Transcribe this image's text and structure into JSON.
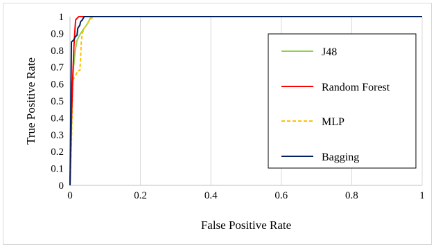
{
  "chart_data": {
    "type": "line",
    "title": "",
    "xlabel": "False Positive Rate",
    "ylabel": "True Positive Rate",
    "xlim": [
      0,
      1
    ],
    "ylim": [
      0,
      1
    ],
    "x_ticks": [
      "0",
      "0.2",
      "0.4",
      "0.6",
      "0.8",
      "1"
    ],
    "y_ticks": [
      "0",
      "0.1",
      "0.2",
      "0.3",
      "0.4",
      "0.5",
      "0.6",
      "0.7",
      "0.8",
      "0.9",
      "1"
    ],
    "grid": "vertical",
    "legend_position": "right",
    "series": [
      {
        "name": "J48",
        "color": "#92d050",
        "dash": "solid",
        "points": [
          [
            0,
            0
          ],
          [
            0.003,
            0.25
          ],
          [
            0.007,
            0.6
          ],
          [
            0.01,
            0.7
          ],
          [
            0.015,
            0.8
          ],
          [
            0.02,
            0.86
          ],
          [
            0.025,
            0.88
          ],
          [
            0.03,
            0.9
          ],
          [
            0.04,
            0.93
          ],
          [
            0.05,
            0.96
          ],
          [
            0.055,
            0.98
          ],
          [
            0.06,
            1.0
          ],
          [
            1,
            1
          ]
        ]
      },
      {
        "name": "Random Forest",
        "color": "#ff0000",
        "dash": "solid",
        "points": [
          [
            0,
            0
          ],
          [
            0.002,
            0.2
          ],
          [
            0.005,
            0.45
          ],
          [
            0.008,
            0.65
          ],
          [
            0.011,
            0.82
          ],
          [
            0.014,
            0.92
          ],
          [
            0.016,
            0.98
          ],
          [
            0.02,
            0.99
          ],
          [
            0.025,
            1.0
          ],
          [
            1,
            1
          ]
        ]
      },
      {
        "name": "MLP",
        "color": "#ffc000",
        "dash": "dashed",
        "points": [
          [
            0,
            0
          ],
          [
            0.004,
            0.25
          ],
          [
            0.008,
            0.62
          ],
          [
            0.012,
            0.64
          ],
          [
            0.018,
            0.66
          ],
          [
            0.022,
            0.68
          ],
          [
            0.028,
            0.68
          ],
          [
            0.03,
            0.75
          ],
          [
            0.032,
            0.85
          ],
          [
            0.035,
            0.9
          ],
          [
            0.04,
            0.93
          ],
          [
            0.05,
            0.96
          ],
          [
            0.06,
            0.99
          ],
          [
            0.07,
            1.0
          ],
          [
            1,
            1
          ]
        ]
      },
      {
        "name": "Bagging",
        "color": "#002060",
        "dash": "solid",
        "points": [
          [
            0,
            0
          ],
          [
            0.002,
            0.4
          ],
          [
            0.004,
            0.85
          ],
          [
            0.01,
            0.86
          ],
          [
            0.015,
            0.88
          ],
          [
            0.02,
            0.89
          ],
          [
            0.022,
            0.93
          ],
          [
            0.028,
            0.95
          ],
          [
            0.03,
            0.97
          ],
          [
            0.035,
            0.98
          ],
          [
            0.04,
            1.0
          ],
          [
            1,
            1
          ]
        ]
      }
    ]
  }
}
